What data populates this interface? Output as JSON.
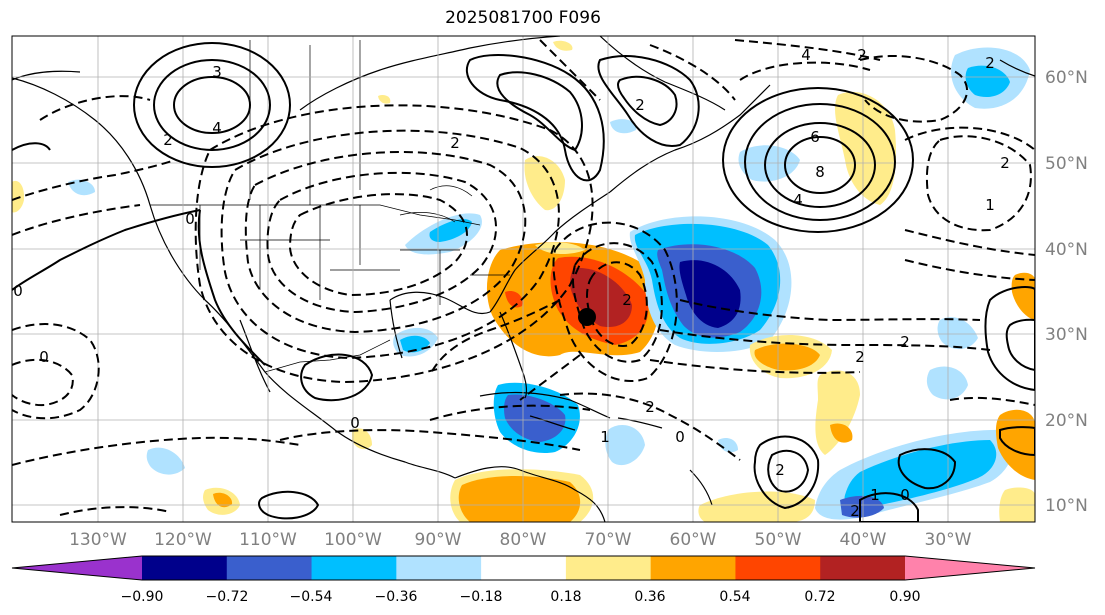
{
  "title": "2025081700 F096",
  "map": {
    "lon_ticks": [
      "130°W",
      "120°W",
      "110°W",
      "100°W",
      "90°W",
      "80°W",
      "70°W",
      "60°W",
      "50°W",
      "40°W",
      "30°W"
    ],
    "lat_ticks": [
      "60°N",
      "50°N",
      "40°N",
      "30°N",
      "20°N",
      "10°N"
    ],
    "extent": {
      "lon_min": -138,
      "lon_max": -17,
      "lat_min": 8,
      "lat_max": 65
    },
    "gridlines": true,
    "contour_labels": [
      "3",
      "4",
      "2",
      "0",
      "4",
      "2",
      "6",
      "8",
      "4",
      "2",
      "2",
      "2",
      "2",
      "1",
      "0",
      "2",
      "2",
      "2",
      "1",
      "0",
      "2",
      "0",
      "0",
      "0",
      "2",
      "2",
      "1"
    ],
    "marker": {
      "lon": -70.2,
      "lat": 32.1,
      "color": "#000000"
    }
  },
  "colorbar": {
    "tick_labels": [
      "−0.90",
      "−0.72",
      "−0.54",
      "−0.36",
      "−0.18",
      "0.18",
      "0.36",
      "0.54",
      "0.72",
      "0.90"
    ],
    "colors": [
      "#9a32cd",
      "#00008b",
      "#3a5fcd",
      "#00bfff",
      "#b0e2ff",
      "#ffffff",
      "#ffec8b",
      "#ffa500",
      "#ff4500",
      "#b22222",
      "#ff82ab"
    ]
  }
}
